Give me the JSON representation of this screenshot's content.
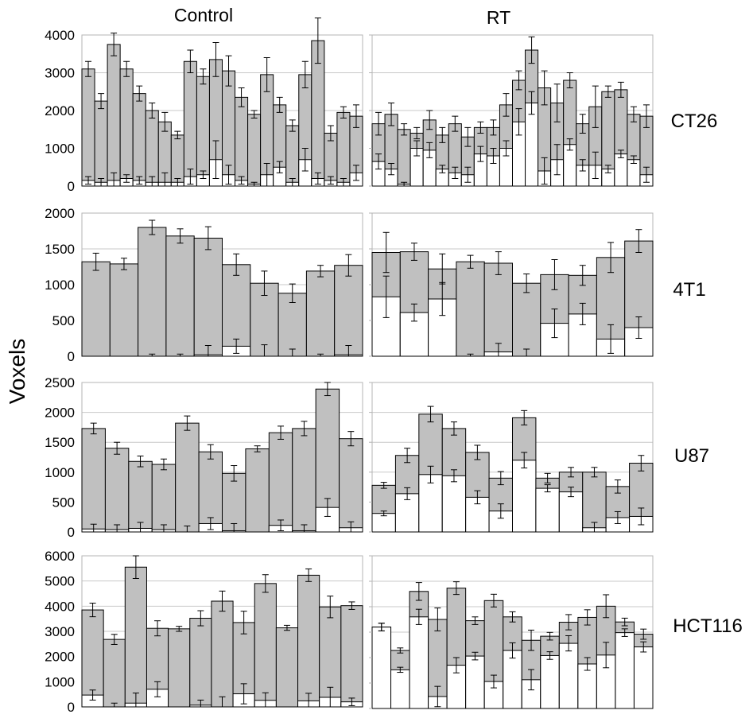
{
  "figure": {
    "y_axis_label": "Voxels",
    "column_titles": [
      "Control",
      "RT"
    ],
    "row_labels": [
      "CT26",
      "4T1",
      "U87",
      "HCT116"
    ],
    "colors": {
      "total_fill": "#c0c0c0",
      "inner_fill": "#ffffff",
      "stroke": "#000000",
      "grid": "#c8c8c8",
      "frame": "#b4b4b4"
    }
  },
  "chart_data": [
    {
      "type": "bar",
      "row": "CT26",
      "column": "Control",
      "ylim": [
        0,
        4000
      ],
      "yticks": [
        0,
        1000,
        2000,
        3000,
        4000
      ],
      "series": [
        {
          "name": "total",
          "values": [
            3100,
            2250,
            3750,
            3100,
            2450,
            2000,
            1700,
            1350,
            3300,
            2900,
            3350,
            3050,
            2350,
            1900,
            2950,
            2150,
            1600,
            2950,
            3850,
            1400,
            1950,
            1850
          ],
          "errors": [
            200,
            200,
            300,
            200,
            200,
            200,
            250,
            100,
            300,
            200,
            450,
            400,
            250,
            100,
            450,
            200,
            150,
            350,
            600,
            200,
            150,
            300
          ]
        },
        {
          "name": "inner",
          "values": [
            150,
            100,
            150,
            200,
            150,
            100,
            100,
            100,
            250,
            300,
            700,
            300,
            150,
            50,
            300,
            500,
            100,
            700,
            200,
            150,
            100,
            350
          ],
          "errors": [
            100,
            100,
            200,
            100,
            100,
            150,
            250,
            100,
            200,
            100,
            500,
            250,
            100,
            50,
            300,
            150,
            100,
            300,
            150,
            100,
            100,
            200
          ]
        }
      ]
    },
    {
      "type": "bar",
      "row": "CT26",
      "column": "RT",
      "ylim": [
        0,
        4000
      ],
      "yticks": [
        0,
        1000,
        2000,
        3000,
        4000
      ],
      "series": [
        {
          "name": "total",
          "values": [
            1650,
            1900,
            1500,
            1400,
            1750,
            1350,
            1650,
            1300,
            1550,
            1550,
            2150,
            2800,
            3600,
            2600,
            2200,
            2800,
            1650,
            2100,
            2500,
            2550,
            1900,
            1850
          ],
          "errors": [
            300,
            300,
            150,
            150,
            250,
            200,
            200,
            250,
            150,
            200,
            300,
            250,
            350,
            450,
            500,
            200,
            250,
            550,
            150,
            200,
            200,
            300
          ]
        },
        {
          "name": "inner",
          "values": [
            650,
            450,
            50,
            1000,
            950,
            450,
            350,
            300,
            850,
            800,
            1000,
            1700,
            2200,
            400,
            700,
            1100,
            550,
            550,
            450,
            850,
            700,
            300
          ],
          "errors": [
            200,
            150,
            50,
            200,
            200,
            100,
            150,
            200,
            200,
            200,
            200,
            350,
            300,
            350,
            400,
            150,
            150,
            350,
            100,
            100,
            100,
            200
          ]
        }
      ]
    },
    {
      "type": "bar",
      "row": "4T1",
      "column": "Control",
      "ylim": [
        0,
        2000
      ],
      "yticks": [
        0,
        500,
        1000,
        1500,
        2000
      ],
      "series": [
        {
          "name": "total",
          "values": [
            1320,
            1290,
            1800,
            1680,
            1650,
            1280,
            1020,
            880,
            1190,
            1270
          ],
          "errors": [
            120,
            80,
            100,
            100,
            160,
            150,
            170,
            130,
            80,
            150
          ]
        },
        {
          "name": "inner",
          "values": [
            0,
            0,
            0,
            0,
            20,
            140,
            0,
            0,
            0,
            20
          ],
          "errors": [
            0,
            0,
            30,
            30,
            130,
            100,
            160,
            100,
            30,
            130
          ]
        }
      ]
    },
    {
      "type": "bar",
      "row": "4T1",
      "column": "RT",
      "ylim": [
        0,
        2000
      ],
      "yticks": [
        0,
        500,
        1000,
        1500,
        2000
      ],
      "series": [
        {
          "name": "total",
          "values": [
            1450,
            1460,
            1220,
            1320,
            1300,
            1020,
            1140,
            1130,
            1380,
            1610
          ],
          "errors": [
            280,
            120,
            210,
            90,
            160,
            130,
            210,
            140,
            210,
            160
          ]
        },
        {
          "name": "inner",
          "values": [
            830,
            610,
            800,
            0,
            60,
            0,
            460,
            590,
            240,
            400
          ],
          "errors": [
            290,
            120,
            230,
            30,
            120,
            100,
            200,
            150,
            200,
            150
          ]
        }
      ]
    },
    {
      "type": "bar",
      "row": "U87",
      "column": "Control",
      "ylim": [
        0,
        2500
      ],
      "yticks": [
        0,
        500,
        1000,
        1500,
        2000,
        2500
      ],
      "series": [
        {
          "name": "total",
          "values": [
            1730,
            1400,
            1180,
            1130,
            1820,
            1340,
            980,
            1390,
            1660,
            1730,
            2390,
            1560
          ],
          "errors": [
            90,
            100,
            90,
            90,
            120,
            120,
            130,
            50,
            110,
            120,
            110,
            120
          ]
        },
        {
          "name": "inner",
          "values": [
            50,
            40,
            60,
            40,
            0,
            140,
            20,
            0,
            110,
            20,
            410,
            70
          ],
          "errors": [
            80,
            80,
            100,
            80,
            100,
            100,
            120,
            0,
            90,
            100,
            150,
            100
          ]
        }
      ]
    },
    {
      "type": "bar",
      "row": "U87",
      "column": "RT",
      "ylim": [
        0,
        2500
      ],
      "yticks": [
        0,
        500,
        1000,
        1500,
        2000,
        2500
      ],
      "series": [
        {
          "name": "total",
          "values": [
            780,
            1280,
            1970,
            1730,
            1330,
            900,
            1910,
            900,
            1000,
            1000,
            760,
            1150
          ],
          "errors": [
            50,
            120,
            130,
            110,
            120,
            110,
            120,
            80,
            80,
            80,
            110,
            130
          ]
        },
        {
          "name": "inner",
          "values": [
            310,
            640,
            960,
            940,
            580,
            350,
            1200,
            730,
            670,
            70,
            240,
            260
          ],
          "errors": [
            40,
            100,
            140,
            100,
            110,
            120,
            130,
            60,
            80,
            90,
            100,
            140
          ]
        }
      ]
    },
    {
      "type": "bar",
      "row": "HCT116",
      "column": "Control",
      "ylim": [
        0,
        6000
      ],
      "yticks": [
        0,
        1000,
        2000,
        3000,
        4000,
        5000,
        6000
      ],
      "series": [
        {
          "name": "total",
          "values": [
            3850,
            2680,
            5550,
            3120,
            3100,
            3520,
            4200,
            3350,
            4900,
            3140,
            5230,
            3970,
            4020
          ],
          "errors": [
            270,
            200,
            450,
            300,
            100,
            300,
            400,
            450,
            350,
            100,
            250,
            430,
            150
          ]
        },
        {
          "name": "inner",
          "values": [
            470,
            0,
            150,
            700,
            0,
            70,
            0,
            520,
            260,
            0,
            240,
            380,
            200
          ],
          "errors": [
            200,
            150,
            400,
            300,
            0,
            200,
            400,
            400,
            300,
            0,
            300,
            400,
            150
          ]
        }
      ]
    },
    {
      "type": "bar",
      "row": "HCT116",
      "column": "RT",
      "ylim": [
        0,
        6000
      ],
      "yticks": [
        0,
        1000,
        2000,
        3000,
        4000,
        5000,
        6000
      ],
      "series": [
        {
          "name": "total",
          "values": [
            3200,
            2280,
            4600,
            3500,
            4730,
            3450,
            4240,
            3600,
            2680,
            2840,
            3390,
            3580,
            4020,
            3400,
            2920
          ],
          "errors": [
            150,
            100,
            350,
            450,
            250,
            150,
            250,
            200,
            400,
            150,
            300,
            300,
            450,
            150,
            200
          ]
        },
        {
          "name": "inner",
          "values": [
            3200,
            1520,
            3600,
            470,
            1700,
            2060,
            1060,
            2280,
            1130,
            2080,
            2560,
            1750,
            2100,
            2980,
            2420
          ],
          "errors": [
            150,
            100,
            300,
            400,
            300,
            150,
            250,
            300,
            400,
            150,
            300,
            250,
            500,
            150,
            200
          ]
        }
      ]
    }
  ]
}
